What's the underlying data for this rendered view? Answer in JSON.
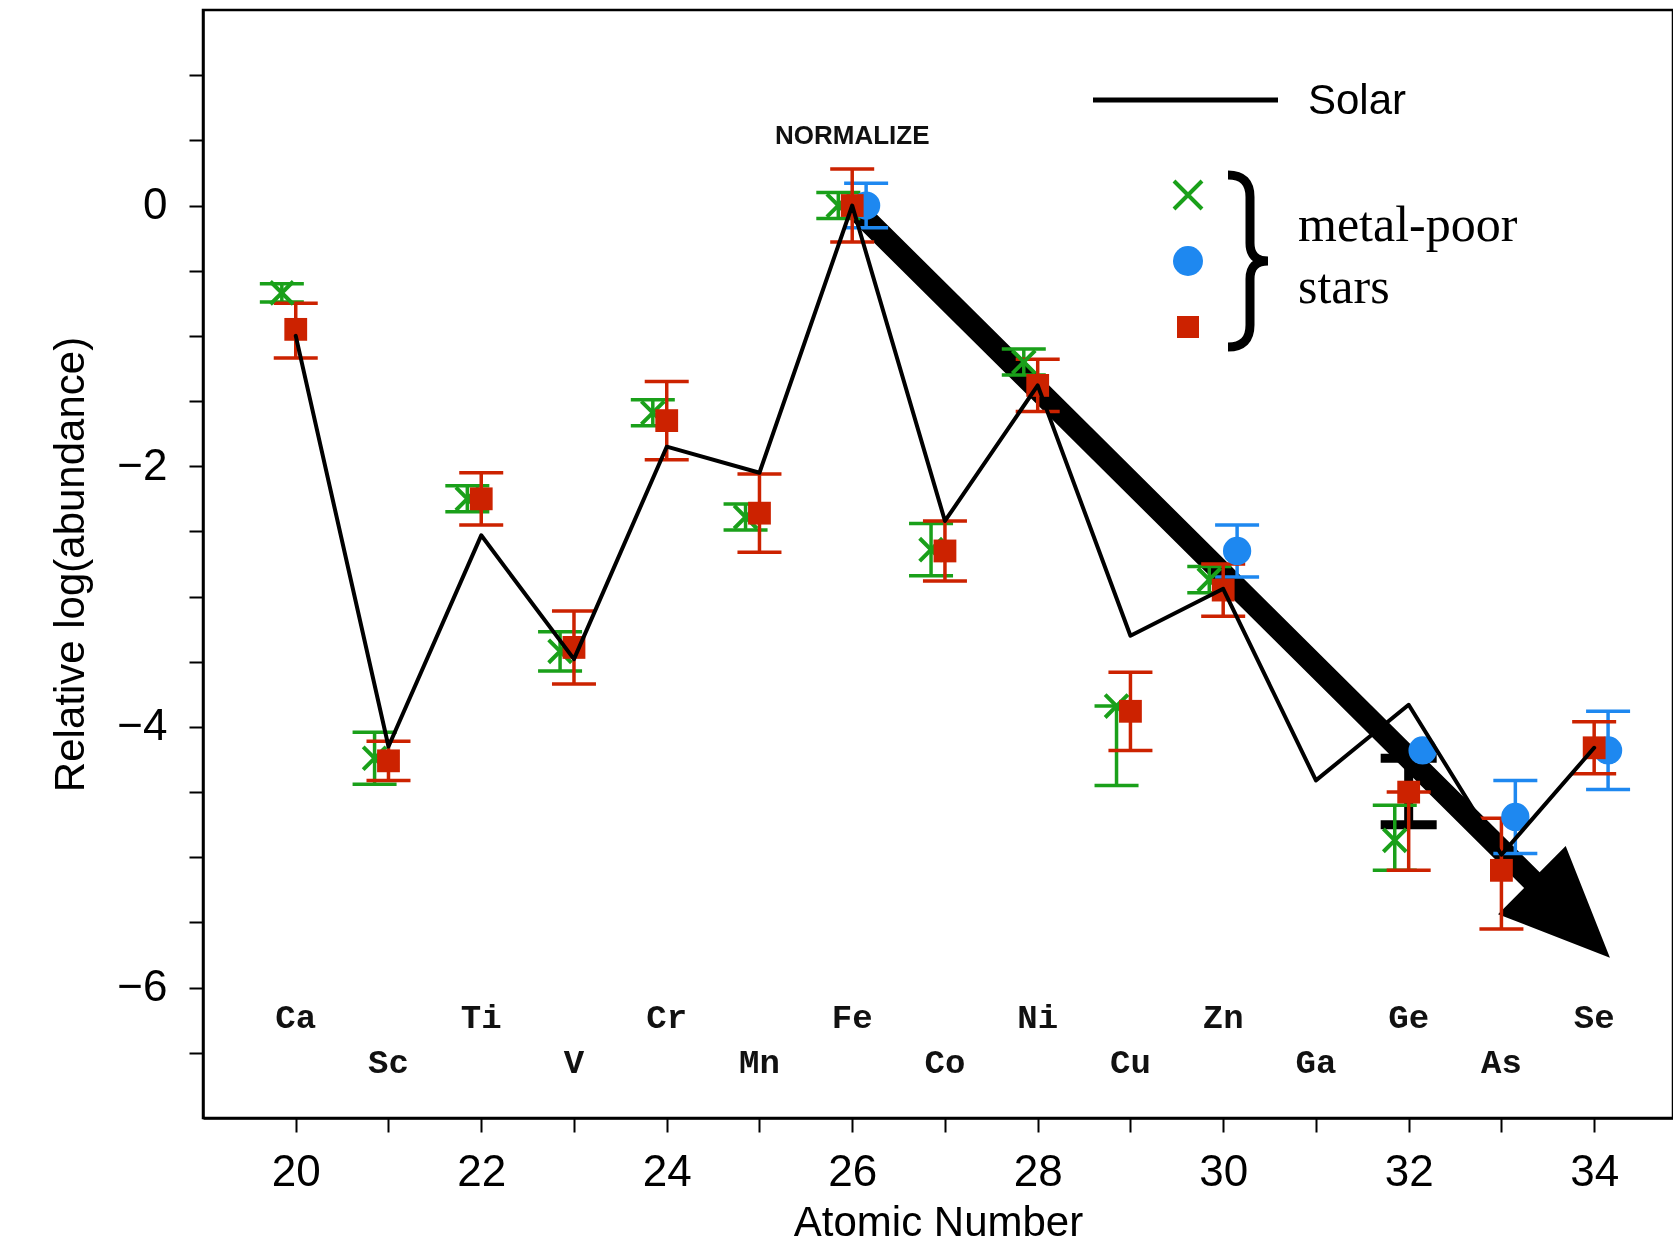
{
  "chart_data": {
    "type": "scatter",
    "xlabel": "Atomic Number",
    "ylabel": "Relative log(abundance)",
    "xlim": [
      19,
      34.85
    ],
    "ylim": [
      -7,
      1.5
    ],
    "xticks": [
      20,
      {
        "value": 21,
        "label": null
      },
      22,
      {
        "value": 23,
        "label": null
      },
      24,
      {
        "value": 25,
        "label": null
      },
      26,
      {
        "value": 27,
        "label": null
      },
      28,
      {
        "value": 29,
        "label": null
      },
      30,
      {
        "value": 31,
        "label": null
      },
      32,
      {
        "value": 33,
        "label": null
      },
      34
    ],
    "yticks": [
      {
        "value": -6.5,
        "label": null
      },
      {
        "value": -6,
        "label": "−6"
      },
      {
        "value": -5.5,
        "label": null
      },
      {
        "value": -5,
        "label": null
      },
      {
        "value": -4.5,
        "label": null
      },
      {
        "value": -4,
        "label": "−4"
      },
      {
        "value": -3.5,
        "label": null
      },
      {
        "value": -3,
        "label": null
      },
      {
        "value": -2.5,
        "label": null
      },
      {
        "value": -2,
        "label": "−2"
      },
      {
        "value": -1.5,
        "label": null
      },
      {
        "value": -1,
        "label": null
      },
      {
        "value": -0.5,
        "label": null
      },
      {
        "value": 0,
        "label": "0"
      },
      {
        "value": 0.5,
        "label": null
      },
      {
        "value": 1,
        "label": null
      }
    ],
    "grid": false,
    "legend": "top right",
    "series": [
      {
        "name": "Solar",
        "type": "line",
        "color": "#000000",
        "marker": "none",
        "x": [
          20,
          21,
          22,
          23,
          24,
          25,
          26,
          27,
          28,
          29,
          30,
          31,
          32,
          33,
          34
        ],
        "values": [
          -1.0,
          -4.15,
          -2.53,
          -3.48,
          -1.85,
          -2.05,
          0,
          -2.42,
          -1.38,
          -3.3,
          -2.94,
          -4.41,
          -3.83,
          -4.98,
          -4.16
        ]
      },
      {
        "type": "scatter",
        "color": "#1aa01a",
        "marker": "cross",
        "x": [
          19.85,
          20.85,
          21.85,
          22.85,
          23.85,
          24.85,
          25.85,
          26.85,
          27.85,
          28.85,
          29.85,
          31.85
        ],
        "values": [
          -0.67,
          -4.24,
          -2.25,
          -3.42,
          -1.59,
          -2.39,
          0,
          -2.64,
          -1.2,
          -3.84,
          -2.87,
          -4.87
        ],
        "errors": [
          0.07,
          0.2,
          0.1,
          0.15,
          0.1,
          0.1,
          0.1,
          0.2,
          0.1,
          [
            -4.45,
            -3.84
          ],
          0.1,
          [
            -5.1,
            -4.6
          ]
        ]
      },
      {
        "type": "scatter",
        "color": "#1e88f0",
        "marker": "circle",
        "x": [
          26.15,
          30.15,
          32.15,
          33.15,
          34.15
        ],
        "values": [
          0,
          -2.65,
          -4.18,
          -4.69,
          -4.18
        ],
        "errors": [
          0.17,
          0.2,
          null,
          0.28,
          0.3
        ]
      },
      {
        "type": "scatter",
        "color": "#cc2200",
        "marker": "square",
        "x": [
          20,
          21,
          22,
          23,
          24,
          25,
          26,
          27,
          28,
          29,
          30,
          32,
          33,
          34
        ],
        "values": [
          -0.95,
          -4.26,
          -2.25,
          -3.39,
          -1.65,
          -2.36,
          0,
          -2.65,
          -1.38,
          -3.88,
          -2.95,
          -4.5,
          -5.1,
          -4.16
        ],
        "errors": [
          [
            -1.17,
            -0.75
          ],
          0.15,
          0.2,
          0.28,
          0.3,
          0.3,
          0.28,
          0.23,
          0.2,
          0.3,
          0.2,
          [
            -5.1,
            -4.5
          ],
          [
            -5.55,
            -4.7
          ],
          0.2
        ]
      }
    ],
    "annotations": [
      "NORMALIZE",
      "metal-poor stars",
      "Ca",
      "Sc",
      "Ti",
      "V",
      "Cr",
      "Mn",
      "Fe",
      "Co",
      "Ni",
      "Cu",
      "Zn",
      "Ga",
      "Ge",
      "As",
      "Se"
    ]
  }
}
